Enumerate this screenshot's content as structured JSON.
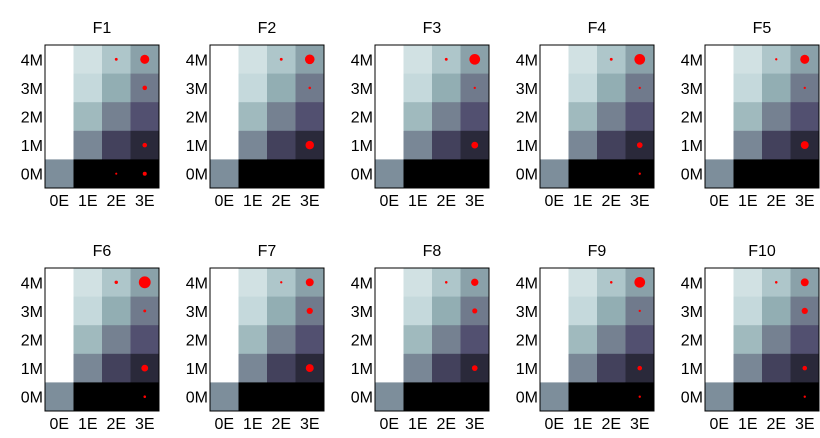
{
  "chart_data": {
    "type": "heatmap",
    "layout": "2 rows x 5 columns of small-multiple panels",
    "x_tick_labels": [
      "0E",
      "1E",
      "2E",
      "3E"
    ],
    "y_tick_labels": [
      "4M",
      "3M",
      "2M",
      "1M",
      "0M"
    ],
    "colormap": "bone (white = high, black = low)",
    "background_shade": [
      [
        1.0,
        0.84,
        0.72,
        0.58
      ],
      [
        1.0,
        0.8,
        0.62,
        0.46
      ],
      [
        1.0,
        0.67,
        0.48,
        0.34
      ],
      [
        1.0,
        0.5,
        0.28,
        0.18
      ],
      [
        0.52,
        0.0,
        0.0,
        0.0
      ]
    ],
    "marker_color": "#ff0000",
    "marker_size_note": "marker radius grows with the marker value",
    "panels": [
      {
        "title": "F1",
        "markers": [
          {
            "x": 2,
            "y": 4,
            "size": 0.15
          },
          {
            "x": 3,
            "y": 4,
            "size": 0.7
          },
          {
            "x": 3,
            "y": 3,
            "size": 0.3
          },
          {
            "x": 3,
            "y": 1,
            "size": 0.3
          },
          {
            "x": 2,
            "y": 0,
            "size": 0.08
          },
          {
            "x": 3,
            "y": 0,
            "size": 0.25
          }
        ]
      },
      {
        "title": "F2",
        "markers": [
          {
            "x": 2,
            "y": 4,
            "size": 0.15
          },
          {
            "x": 3,
            "y": 4,
            "size": 0.75
          },
          {
            "x": 3,
            "y": 3,
            "size": 0.12
          },
          {
            "x": 3,
            "y": 1,
            "size": 0.65
          }
        ]
      },
      {
        "title": "F3",
        "markers": [
          {
            "x": 2,
            "y": 4,
            "size": 0.15
          },
          {
            "x": 3,
            "y": 4,
            "size": 0.85
          },
          {
            "x": 3,
            "y": 3,
            "size": 0.1
          },
          {
            "x": 3,
            "y": 1,
            "size": 0.5
          }
        ]
      },
      {
        "title": "F4",
        "markers": [
          {
            "x": 2,
            "y": 4,
            "size": 0.15
          },
          {
            "x": 3,
            "y": 4,
            "size": 0.85
          },
          {
            "x": 3,
            "y": 3,
            "size": 0.1
          },
          {
            "x": 3,
            "y": 1,
            "size": 0.4
          },
          {
            "x": 3,
            "y": 0,
            "size": 0.1
          }
        ]
      },
      {
        "title": "F5",
        "markers": [
          {
            "x": 2,
            "y": 4,
            "size": 0.1
          },
          {
            "x": 3,
            "y": 4,
            "size": 0.7
          },
          {
            "x": 3,
            "y": 3,
            "size": 0.1
          },
          {
            "x": 3,
            "y": 1,
            "size": 0.6
          }
        ]
      },
      {
        "title": "F6",
        "markers": [
          {
            "x": 2,
            "y": 4,
            "size": 0.2
          },
          {
            "x": 3,
            "y": 4,
            "size": 0.95
          },
          {
            "x": 3,
            "y": 3,
            "size": 0.15
          },
          {
            "x": 3,
            "y": 1,
            "size": 0.5
          },
          {
            "x": 3,
            "y": 0,
            "size": 0.12
          }
        ]
      },
      {
        "title": "F7",
        "markers": [
          {
            "x": 2,
            "y": 4,
            "size": 0.1
          },
          {
            "x": 3,
            "y": 4,
            "size": 0.6
          },
          {
            "x": 3,
            "y": 3,
            "size": 0.45
          },
          {
            "x": 3,
            "y": 1,
            "size": 0.6
          }
        ]
      },
      {
        "title": "F8",
        "markers": [
          {
            "x": 2,
            "y": 4,
            "size": 0.12
          },
          {
            "x": 3,
            "y": 4,
            "size": 0.55
          },
          {
            "x": 3,
            "y": 3,
            "size": 0.35
          },
          {
            "x": 3,
            "y": 1,
            "size": 0.4
          }
        ]
      },
      {
        "title": "F9",
        "markers": [
          {
            "x": 2,
            "y": 4,
            "size": 0.12
          },
          {
            "x": 3,
            "y": 4,
            "size": 0.85
          },
          {
            "x": 3,
            "y": 3,
            "size": 0.1
          },
          {
            "x": 3,
            "y": 1,
            "size": 0.3
          },
          {
            "x": 3,
            "y": 0,
            "size": 0.1
          }
        ]
      },
      {
        "title": "F10",
        "markers": [
          {
            "x": 2,
            "y": 4,
            "size": 0.12
          },
          {
            "x": 3,
            "y": 4,
            "size": 0.6
          },
          {
            "x": 3,
            "y": 3,
            "size": 0.45
          },
          {
            "x": 3,
            "y": 1,
            "size": 0.3
          },
          {
            "x": 3,
            "y": 0,
            "size": 0.1
          }
        ]
      }
    ]
  }
}
